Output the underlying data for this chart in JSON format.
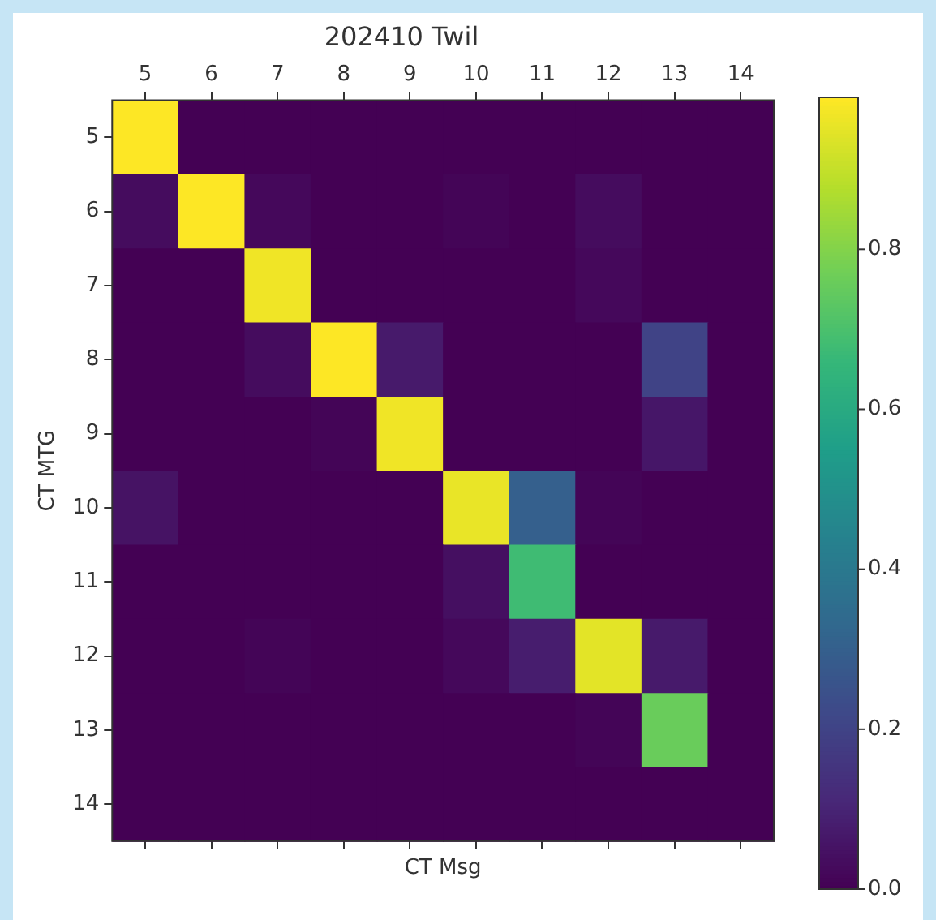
{
  "chart_data": {
    "type": "heatmap",
    "title": "202410 Twil",
    "xlabel": "CT Msg",
    "ylabel": "CT MTG",
    "categories": [
      "5",
      "6",
      "7",
      "8",
      "9",
      "10",
      "11",
      "12",
      "13",
      "14"
    ],
    "y_categories": [
      "5",
      "6",
      "7",
      "8",
      "9",
      "10",
      "11",
      "12",
      "13",
      "14"
    ],
    "cells": [
      [
        0.99,
        0,
        0,
        0,
        0,
        0,
        0,
        0,
        0,
        0
      ],
      [
        0.03,
        0.99,
        0.02,
        0,
        0,
        0.01,
        0,
        0.03,
        0,
        0
      ],
      [
        0,
        0,
        0.97,
        0,
        0,
        0,
        0,
        0.02,
        0,
        0
      ],
      [
        0,
        0,
        0.03,
        0.99,
        0.07,
        0,
        0,
        0,
        0.2,
        0
      ],
      [
        0,
        0,
        0,
        0.01,
        0.97,
        0,
        0,
        0,
        0.06,
        0
      ],
      [
        0.05,
        0,
        0,
        0,
        0,
        0.96,
        0.3,
        0.01,
        0,
        0
      ],
      [
        0,
        0,
        0,
        0,
        0,
        0.04,
        0.68,
        0,
        0,
        0
      ],
      [
        0,
        0,
        0.01,
        0,
        0,
        0.02,
        0.08,
        0.95,
        0.07,
        0
      ],
      [
        0,
        0,
        0,
        0,
        0,
        0,
        0,
        0.01,
        0.76,
        0
      ],
      [
        0,
        0,
        0,
        0,
        0,
        0,
        0,
        0,
        0,
        0
      ]
    ],
    "clim": [
      0,
      0.99
    ],
    "cticks": [
      {
        "value": 0,
        "label": "0.0"
      },
      0.2,
      0.4,
      0.6,
      0.8
    ]
  }
}
